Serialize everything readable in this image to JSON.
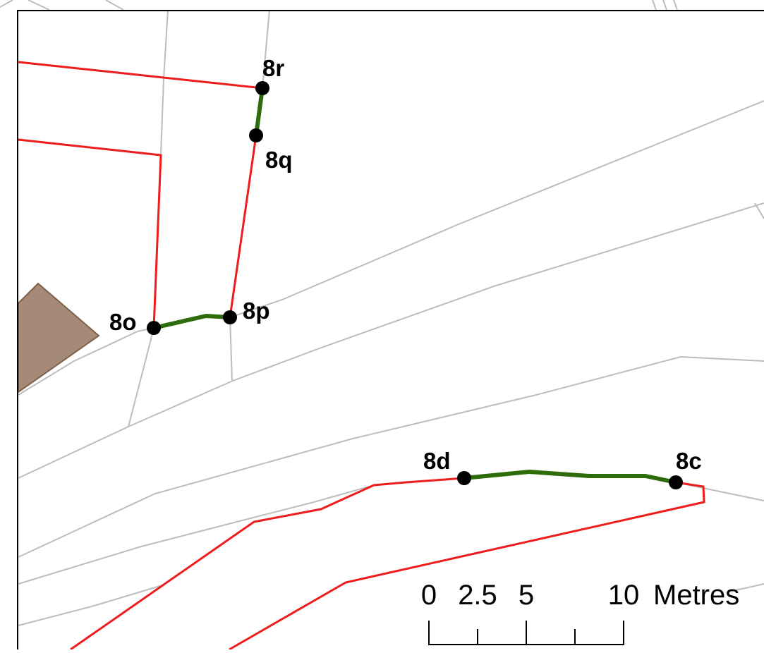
{
  "map": {
    "colors": {
      "background": "#ffffff",
      "parcel_line": "#bdbdbd",
      "boundary_line": "#ee1c1c",
      "segment_line": "#2e6b0a",
      "building_fill": "#a58a78",
      "building_stroke": "#7d6049",
      "point_fill": "#000000",
      "frame_stroke": "#000000"
    },
    "points": [
      {
        "id": "8r",
        "label": "8r"
      },
      {
        "id": "8q",
        "label": "8q"
      },
      {
        "id": "8o",
        "label": "8o"
      },
      {
        "id": "8p",
        "label": "8p"
      },
      {
        "id": "8d",
        "label": "8d"
      },
      {
        "id": "8c",
        "label": "8c"
      }
    ],
    "scale_bar": {
      "labels": [
        "0",
        "2.5",
        "5",
        "10"
      ],
      "unit": "Metres"
    }
  }
}
